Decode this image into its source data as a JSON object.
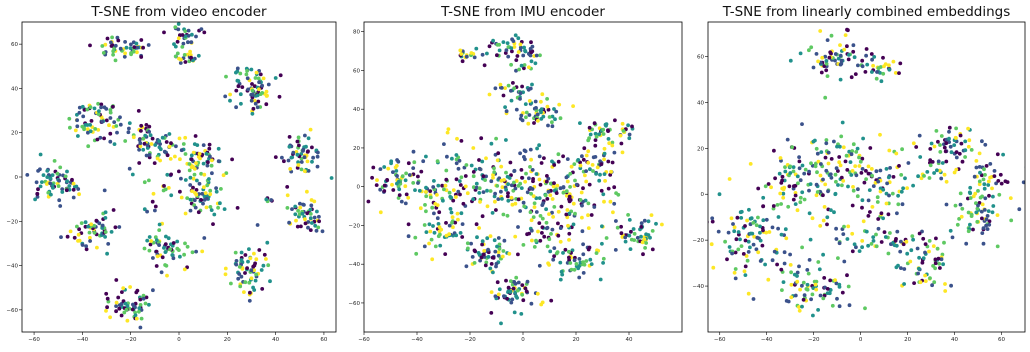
{
  "chart_data": [
    {
      "type": "scatter",
      "title": "T-SNE from video encoder",
      "xlabel": "",
      "ylabel": "",
      "xlim": [
        -65,
        65
      ],
      "ylim": [
        -70,
        70
      ],
      "xticks": [
        -60,
        -40,
        -20,
        0,
        20,
        40,
        60
      ],
      "yticks": [
        -60,
        -40,
        -20,
        0,
        20,
        40,
        60
      ],
      "grid": false,
      "colormap": [
        "#440154",
        "#3b528b",
        "#21918c",
        "#5ec962",
        "#fde725"
      ],
      "clusters": [
        {
          "x": -27,
          "y": 58,
          "sx": 3,
          "sy": 2.5,
          "n": 28
        },
        {
          "x": -18,
          "y": 58,
          "sx": 2.5,
          "sy": 2.5,
          "n": 22
        },
        {
          "x": 2,
          "y": 63,
          "sx": 3,
          "sy": 3,
          "n": 30
        },
        {
          "x": 3,
          "y": 53,
          "sx": 3,
          "sy": 2,
          "n": 20
        },
        {
          "x": 30,
          "y": 40,
          "sx": 5,
          "sy": 5,
          "n": 75
        },
        {
          "x": -33,
          "y": 25,
          "sx": 6,
          "sy": 5,
          "n": 80
        },
        {
          "x": -12,
          "y": 15,
          "sx": 5,
          "sy": 5,
          "n": 65
        },
        {
          "x": 7,
          "y": 7,
          "sx": 6,
          "sy": 6,
          "n": 75
        },
        {
          "x": 50,
          "y": 10,
          "sx": 4.5,
          "sy": 5,
          "n": 60
        },
        {
          "x": -55,
          "y": -1,
          "sx": 4,
          "sy": 4,
          "n": 45
        },
        {
          "x": -45,
          "y": -3,
          "sx": 3,
          "sy": 3,
          "n": 25
        },
        {
          "x": 10,
          "y": -10,
          "sx": 4.5,
          "sy": 4.5,
          "n": 55
        },
        {
          "x": 52,
          "y": -17,
          "sx": 4,
          "sy": 4,
          "n": 50
        },
        {
          "x": -35,
          "y": -25,
          "sx": 4.5,
          "sy": 4.5,
          "n": 60
        },
        {
          "x": -5,
          "y": -33,
          "sx": 5,
          "sy": 4.5,
          "n": 60
        },
        {
          "x": 30,
          "y": -42,
          "sx": 4.5,
          "sy": 6,
          "n": 65
        },
        {
          "x": -20,
          "y": -57,
          "sx": 5,
          "sy": 4,
          "n": 60
        },
        {
          "x": 37,
          "y": -10,
          "sx": 1,
          "sy": 1,
          "n": 5
        },
        {
          "x": -12,
          "y": -10,
          "sx": 2,
          "sy": 4,
          "n": 8
        },
        {
          "x": -5,
          "y": -5,
          "sx": 2,
          "sy": 2,
          "n": 6
        }
      ]
    },
    {
      "type": "scatter",
      "title": "T-SNE from IMU encoder",
      "xlabel": "",
      "ylabel": "",
      "xlim": [
        -60,
        60
      ],
      "ylim": [
        -75,
        85
      ],
      "xticks": [
        -60,
        -40,
        -20,
        0,
        20,
        40
      ],
      "yticks": [
        -60,
        -40,
        -20,
        0,
        20,
        40,
        60,
        80
      ],
      "grid": false,
      "colormap": [
        "#440154",
        "#3b528b",
        "#21918c",
        "#5ec962",
        "#fde725"
      ],
      "clusters": [
        {
          "x": -18,
          "y": 68,
          "sx": 4,
          "sy": 2,
          "n": 20
        },
        {
          "x": -5,
          "y": 72,
          "sx": 4,
          "sy": 3,
          "n": 35
        },
        {
          "x": 5,
          "y": 70,
          "sx": 2,
          "sy": 2,
          "n": 10
        },
        {
          "x": 0,
          "y": 62,
          "sx": 2,
          "sy": 2,
          "n": 10
        },
        {
          "x": -2,
          "y": 50,
          "sx": 4,
          "sy": 2.5,
          "n": 25
        },
        {
          "x": 5,
          "y": 38,
          "sx": 6,
          "sy": 4,
          "n": 55
        },
        {
          "x": 33,
          "y": 28,
          "sx": 5,
          "sy": 3,
          "n": 45
        },
        {
          "x": 28,
          "y": 12,
          "sx": 6,
          "sy": 6,
          "n": 55
        },
        {
          "x": -48,
          "y": 3,
          "sx": 6,
          "sy": 6,
          "n": 60
        },
        {
          "x": -30,
          "y": -5,
          "sx": 8,
          "sy": 10,
          "n": 90
        },
        {
          "x": -8,
          "y": 5,
          "sx": 10,
          "sy": 10,
          "n": 130
        },
        {
          "x": 15,
          "y": -5,
          "sx": 10,
          "sy": 8,
          "n": 100
        },
        {
          "x": -12,
          "y": -35,
          "sx": 5,
          "sy": 4,
          "n": 55
        },
        {
          "x": 20,
          "y": -38,
          "sx": 6,
          "sy": 4,
          "n": 55
        },
        {
          "x": 45,
          "y": -25,
          "sx": 6,
          "sy": 4,
          "n": 50
        },
        {
          "x": -3,
          "y": -55,
          "sx": 5,
          "sy": 6,
          "n": 60
        },
        {
          "x": 10,
          "y": -20,
          "sx": 8,
          "sy": 6,
          "n": 60
        },
        {
          "x": -30,
          "y": -25,
          "sx": 6,
          "sy": 6,
          "n": 40
        }
      ]
    },
    {
      "type": "scatter",
      "title": "T-SNE from linearly combined embeddings",
      "xlabel": "",
      "ylabel": "",
      "xlim": [
        -65,
        70
      ],
      "ylim": [
        -60,
        75
      ],
      "xticks": [
        -60,
        -40,
        -20,
        0,
        20,
        40,
        60
      ],
      "yticks": [
        -40,
        -20,
        0,
        20,
        40,
        60
      ],
      "grid": false,
      "colormap": [
        "#440154",
        "#3b528b",
        "#21918c",
        "#5ec962",
        "#fde725"
      ],
      "clusters": [
        {
          "x": -12,
          "y": 60,
          "sx": 5,
          "sy": 5,
          "n": 60
        },
        {
          "x": 7,
          "y": 55,
          "sx": 4,
          "sy": 3,
          "n": 35
        },
        {
          "x": 40,
          "y": 20,
          "sx": 6,
          "sy": 5,
          "n": 55
        },
        {
          "x": 52,
          "y": 5,
          "sx": 6,
          "sy": 6,
          "n": 50
        },
        {
          "x": 48,
          "y": -10,
          "sx": 6,
          "sy": 6,
          "n": 55
        },
        {
          "x": -48,
          "y": -20,
          "sx": 8,
          "sy": 10,
          "n": 90
        },
        {
          "x": -30,
          "y": 5,
          "sx": 8,
          "sy": 10,
          "n": 85
        },
        {
          "x": -10,
          "y": 10,
          "sx": 8,
          "sy": 10,
          "n": 100
        },
        {
          "x": 10,
          "y": 5,
          "sx": 7,
          "sy": 8,
          "n": 70
        },
        {
          "x": -20,
          "y": -40,
          "sx": 8,
          "sy": 6,
          "n": 80
        },
        {
          "x": 28,
          "y": -30,
          "sx": 5,
          "sy": 6,
          "n": 55
        },
        {
          "x": 15,
          "y": -20,
          "sx": 5,
          "sy": 2,
          "n": 25
        },
        {
          "x": 0,
          "y": -20,
          "sx": 8,
          "sy": 5,
          "n": 35
        },
        {
          "x": 30,
          "y": 10,
          "sx": 3,
          "sy": 4,
          "n": 15
        }
      ]
    }
  ]
}
